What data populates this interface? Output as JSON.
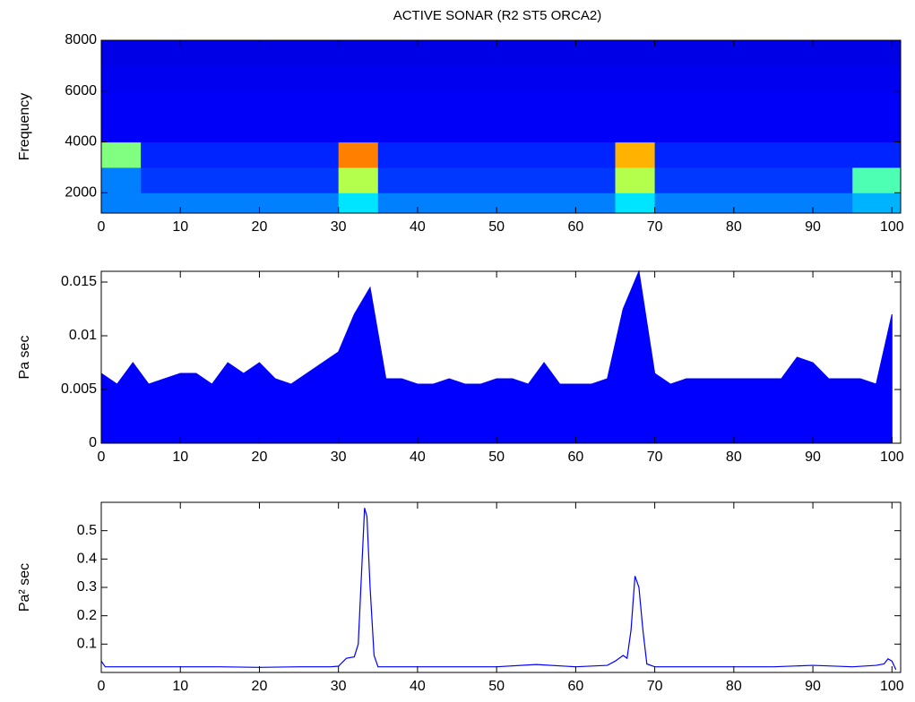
{
  "chart_data": [
    {
      "type": "heatmap",
      "title": "ACTIVE SONAR (R2 ST5 ORCA2)",
      "y_label": "Frequency",
      "colormap": "jet",
      "x_bins": [
        0,
        5,
        10,
        15,
        20,
        25,
        30,
        35,
        40,
        45,
        50,
        55,
        60,
        65,
        70,
        75,
        80,
        85,
        90,
        95,
        101.1
      ],
      "y_bins": [
        1200,
        2000,
        3000,
        4000,
        5000,
        6000,
        7000,
        8000
      ],
      "values": [
        [
          0.25,
          0.25,
          0.25,
          0.25,
          0.25,
          0.25,
          0.35,
          0.25,
          0.25,
          0.25,
          0.25,
          0.25,
          0.25,
          0.35,
          0.25,
          0.25,
          0.25,
          0.25,
          0.25,
          0.3
        ],
        [
          0.25,
          0.18,
          0.18,
          0.18,
          0.18,
          0.18,
          0.55,
          0.18,
          0.18,
          0.18,
          0.18,
          0.18,
          0.18,
          0.55,
          0.18,
          0.18,
          0.18,
          0.18,
          0.18,
          0.45
        ],
        [
          0.5,
          0.16,
          0.16,
          0.16,
          0.16,
          0.16,
          0.75,
          0.16,
          0.16,
          0.16,
          0.16,
          0.16,
          0.16,
          0.7,
          0.16,
          0.16,
          0.16,
          0.16,
          0.16,
          0.16
        ],
        [
          0.12,
          0.12,
          0.12,
          0.12,
          0.12,
          0.12,
          0.12,
          0.12,
          0.12,
          0.12,
          0.12,
          0.12,
          0.12,
          0.12,
          0.12,
          0.12,
          0.12,
          0.12,
          0.12,
          0.12
        ],
        [
          0.12,
          0.12,
          0.12,
          0.12,
          0.12,
          0.12,
          0.12,
          0.12,
          0.12,
          0.12,
          0.12,
          0.12,
          0.12,
          0.12,
          0.12,
          0.12,
          0.12,
          0.12,
          0.12,
          0.12
        ],
        [
          0.11,
          0.11,
          0.11,
          0.11,
          0.11,
          0.11,
          0.11,
          0.11,
          0.11,
          0.11,
          0.11,
          0.11,
          0.11,
          0.11,
          0.11,
          0.11,
          0.11,
          0.11,
          0.11,
          0.11
        ],
        [
          0.1,
          0.1,
          0.1,
          0.1,
          0.1,
          0.1,
          0.1,
          0.1,
          0.1,
          0.1,
          0.1,
          0.1,
          0.1,
          0.1,
          0.1,
          0.1,
          0.1,
          0.1,
          0.1,
          0.1
        ]
      ],
      "xlim": [
        0,
        101.1
      ],
      "xticks": [
        0,
        10,
        20,
        30,
        40,
        50,
        60,
        70,
        80,
        90,
        100
      ],
      "ylim": [
        1200,
        8000
      ],
      "yticks": [
        2000,
        4000,
        6000,
        8000
      ]
    },
    {
      "type": "area",
      "y_label": "Pa sec",
      "color": "#0000ff",
      "x": [
        0,
        2,
        4,
        6,
        8,
        10,
        12,
        14,
        16,
        18,
        20,
        22,
        24,
        26,
        28,
        30,
        32,
        34,
        36,
        38,
        40,
        42,
        44,
        46,
        48,
        50,
        52,
        54,
        56,
        58,
        60,
        62,
        64,
        66,
        68,
        70,
        72,
        74,
        76,
        78,
        80,
        82,
        84,
        86,
        88,
        90,
        92,
        94,
        96,
        98,
        100
      ],
      "values": [
        0.0065,
        0.0055,
        0.0075,
        0.0055,
        0.006,
        0.0065,
        0.0065,
        0.0055,
        0.0075,
        0.0065,
        0.0075,
        0.006,
        0.0055,
        0.0065,
        0.0075,
        0.0085,
        0.012,
        0.0145,
        0.006,
        0.006,
        0.0055,
        0.0055,
        0.006,
        0.0055,
        0.0055,
        0.006,
        0.006,
        0.0055,
        0.0075,
        0.0055,
        0.0055,
        0.0055,
        0.006,
        0.0125,
        0.016,
        0.0065,
        0.0055,
        0.006,
        0.006,
        0.006,
        0.006,
        0.006,
        0.006,
        0.006,
        0.008,
        0.0075,
        0.006,
        0.006,
        0.006,
        0.0055,
        0.012
      ],
      "xlim": [
        0,
        101.1
      ],
      "xticks": [
        0,
        10,
        20,
        30,
        40,
        50,
        60,
        70,
        80,
        90,
        100
      ],
      "ylim": [
        0,
        0.016
      ],
      "yticks": [
        0,
        0.005,
        0.01,
        0.015
      ]
    },
    {
      "type": "line",
      "y_label": "Pa² sec",
      "color": "#0000ff",
      "x": [
        0,
        0.5,
        5,
        10,
        15,
        20,
        25,
        29,
        30,
        31,
        32,
        32.5,
        33,
        33.3,
        33.6,
        34,
        34.5,
        35,
        40,
        45,
        50,
        55,
        60,
        64,
        65,
        66,
        66.5,
        67,
        67.5,
        68,
        68.5,
        69,
        70,
        75,
        80,
        85,
        90,
        95,
        98,
        99,
        99.5,
        100,
        100.5
      ],
      "values": [
        0.04,
        0.02,
        0.02,
        0.02,
        0.02,
        0.018,
        0.02,
        0.02,
        0.022,
        0.05,
        0.055,
        0.1,
        0.4,
        0.58,
        0.55,
        0.3,
        0.06,
        0.02,
        0.02,
        0.02,
        0.02,
        0.028,
        0.02,
        0.025,
        0.04,
        0.06,
        0.05,
        0.15,
        0.34,
        0.3,
        0.15,
        0.03,
        0.02,
        0.02,
        0.02,
        0.02,
        0.025,
        0.02,
        0.025,
        0.03,
        0.048,
        0.04,
        0.01
      ],
      "xlim": [
        0,
        101.1
      ],
      "xticks": [
        0,
        10,
        20,
        30,
        40,
        50,
        60,
        70,
        80,
        90,
        100
      ],
      "ylim": [
        0,
        0.6
      ],
      "yticks": [
        0.1,
        0.2,
        0.3,
        0.4,
        0.5
      ]
    }
  ]
}
